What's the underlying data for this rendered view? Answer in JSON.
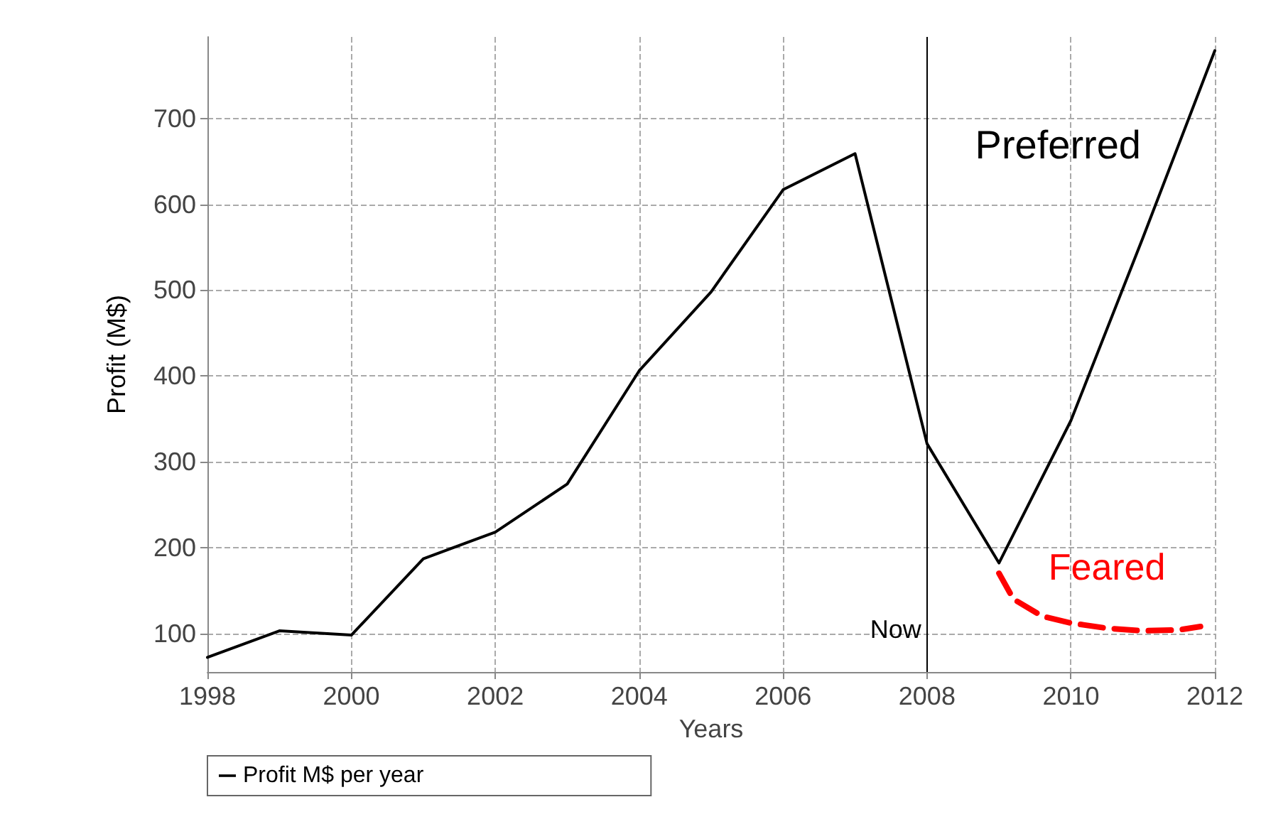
{
  "chart_data": {
    "type": "line",
    "xlabel": "Years",
    "ylabel": "Profit (M$)",
    "series": [
      {
        "name": "Profit M$ per year",
        "color": "#000000",
        "x": [
          1998,
          1999,
          2000,
          2001,
          2002,
          2003,
          2004,
          2005,
          2006,
          2007,
          2008,
          2009,
          2010,
          2011,
          2012
        ],
        "values": [
          72,
          103,
          98,
          187,
          218,
          274,
          406,
          498,
          617,
          659,
          321,
          182,
          348,
          561,
          779
        ]
      },
      {
        "name": "Feared",
        "color": "#ff0000",
        "line_style": "dashed",
        "x": [
          2009,
          2009.2,
          2009.6,
          2010,
          2010.5,
          2011,
          2011.5,
          2011.8
        ],
        "values": [
          170,
          140,
          120,
          112,
          106,
          103,
          104,
          108
        ]
      }
    ],
    "xlim": [
      1998,
      2012
    ],
    "xticks": [
      1998,
      2000,
      2002,
      2004,
      2006,
      2008,
      2010,
      2012
    ],
    "ylim": [
      55,
      795
    ],
    "yticks": [
      100,
      200,
      300,
      400,
      500,
      600,
      700
    ],
    "ref_lines": [
      {
        "axis": "x",
        "value": 2008,
        "label": "Now",
        "color": "#000000"
      }
    ],
    "annotations": [
      "Preferred"
    ],
    "grid": true,
    "legend": "bottom",
    "marker": "none"
  }
}
